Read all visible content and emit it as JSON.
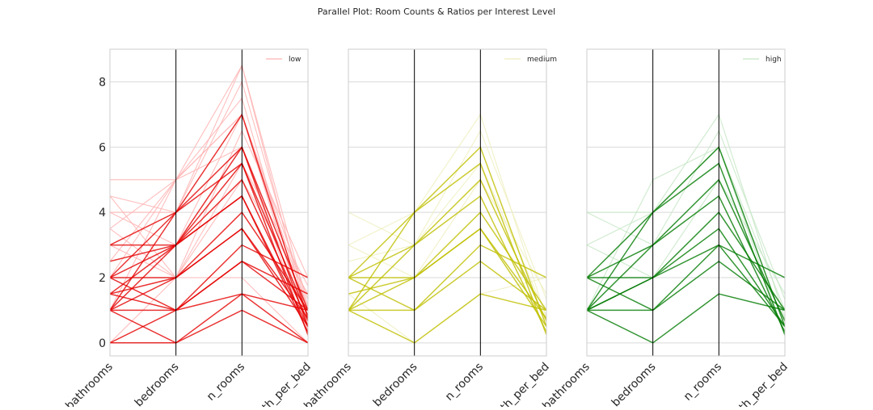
{
  "figure": {
    "suptitle": "Parallel Plot: Room Counts & Ratios per Interest Level"
  },
  "chart_data": [
    {
      "type": "parallel_coordinates",
      "axes": [
        "bathrooms",
        "bedrooms",
        "n_rooms",
        "bath_per_bed"
      ],
      "y_ticks": [
        "0",
        "2",
        "4",
        "6",
        "8"
      ],
      "ylim": [
        -0.4,
        9.0
      ],
      "grid": true,
      "legend": {
        "label": "low",
        "position": "top-right"
      },
      "color_strong": "#e50000",
      "color_faint": "#ffb3b3",
      "lines_strong": [
        [
          1,
          0,
          1.5,
          1
        ],
        [
          1,
          1,
          2.5,
          1
        ],
        [
          1,
          2,
          3.5,
          0.5
        ],
        [
          1,
          3,
          4.5,
          0.33
        ],
        [
          1,
          4,
          5.5,
          0.25
        ],
        [
          2,
          1,
          3,
          2
        ],
        [
          2,
          2,
          4,
          1
        ],
        [
          2,
          3,
          5,
          0.67
        ],
        [
          2,
          4,
          6,
          0.5
        ],
        [
          1.5,
          1,
          2.5,
          1.5
        ],
        [
          1.5,
          2,
          3.5,
          0.75
        ],
        [
          1.5,
          3,
          4.5,
          0.5
        ],
        [
          0,
          0,
          1,
          0
        ],
        [
          2.5,
          3,
          5.5,
          0.83
        ],
        [
          3,
          3,
          6,
          1
        ],
        [
          3,
          4,
          7,
          0.75
        ],
        [
          0,
          1,
          1.5,
          0
        ]
      ],
      "lines_faint": [
        [
          4,
          4,
          8,
          1
        ],
        [
          4.5,
          4,
          8.5,
          1.12
        ],
        [
          5,
          5,
          7,
          1
        ],
        [
          3.5,
          5,
          8.5,
          0.7
        ],
        [
          2.5,
          5,
          7.5,
          0.5
        ],
        [
          4,
          3,
          7,
          1.33
        ],
        [
          3.5,
          2,
          5.5,
          1.75
        ],
        [
          0,
          2,
          2,
          0
        ],
        [
          2,
          5,
          7,
          0.4
        ],
        [
          1,
          5,
          6,
          0.2
        ],
        [
          4.5,
          2,
          6.5,
          2
        ],
        [
          3,
          2,
          5,
          1.5
        ]
      ]
    },
    {
      "type": "parallel_coordinates",
      "axes": [
        "bathrooms",
        "bedrooms",
        "n_rooms",
        "bath_per_bed"
      ],
      "ylim": [
        -0.4,
        9.0
      ],
      "grid": true,
      "legend": {
        "label": "medium",
        "position": "top-right"
      },
      "color_strong": "#bfbf00",
      "color_faint": "#eeeebf",
      "lines_strong": [
        [
          1,
          0,
          1.5,
          1
        ],
        [
          1,
          1,
          2.5,
          1
        ],
        [
          1,
          2,
          3.5,
          0.5
        ],
        [
          1,
          3,
          4.5,
          0.33
        ],
        [
          2,
          1,
          3,
          2
        ],
        [
          2,
          2,
          4,
          1
        ],
        [
          2,
          3,
          5,
          0.67
        ],
        [
          2,
          4,
          6,
          0.5
        ],
        [
          1,
          4,
          5.5,
          0.25
        ],
        [
          1.5,
          2,
          3.5,
          0.75
        ]
      ],
      "lines_faint": [
        [
          3,
          4,
          7,
          0.75
        ],
        [
          4,
          3,
          6.5,
          1.33
        ],
        [
          3,
          2,
          5,
          1.5
        ],
        [
          1.5,
          0,
          1.5,
          2
        ],
        [
          2.5,
          3,
          5.5,
          0.83
        ]
      ]
    },
    {
      "type": "parallel_coordinates",
      "axes": [
        "bathrooms",
        "bedrooms",
        "n_rooms",
        "bath_per_bed"
      ],
      "ylim": [
        -0.4,
        9.0
      ],
      "grid": true,
      "legend": {
        "label": "high",
        "position": "top-right"
      },
      "color_strong": "#007a00",
      "color_faint": "#c6e6c6",
      "lines_strong": [
        [
          1,
          0,
          1.5,
          1
        ],
        [
          1,
          1,
          2.5,
          1
        ],
        [
          1,
          2,
          3.5,
          0.5
        ],
        [
          1,
          3,
          4.5,
          0.33
        ],
        [
          2,
          1,
          3,
          2
        ],
        [
          2,
          2,
          4,
          1
        ],
        [
          2,
          3,
          5,
          0.67
        ],
        [
          2,
          4,
          6,
          0.5
        ],
        [
          1,
          4,
          5.5,
          0.25
        ],
        [
          1,
          2,
          3,
          0.5
        ]
      ],
      "lines_faint": [
        [
          3,
          4,
          7,
          0.75
        ],
        [
          4,
          3,
          6.5,
          1.33
        ],
        [
          3,
          2,
          5,
          1.5
        ],
        [
          1,
          5,
          6,
          0.2
        ],
        [
          4,
          4,
          6,
          1
        ]
      ]
    }
  ]
}
